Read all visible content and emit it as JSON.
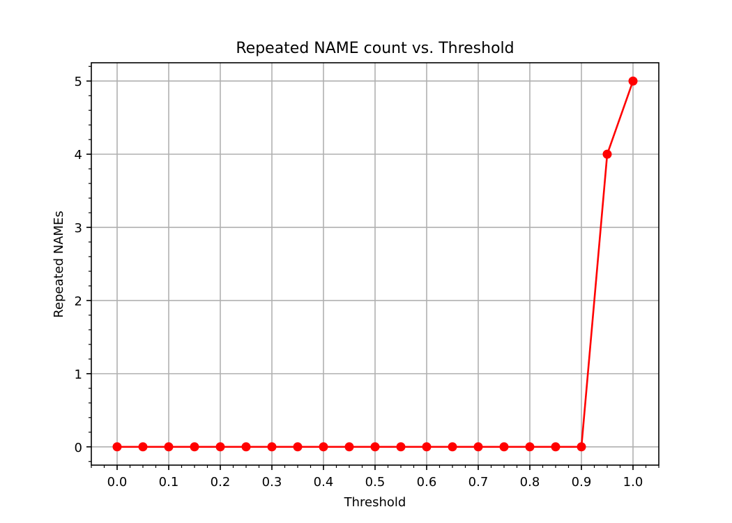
{
  "chart_data": {
    "type": "line",
    "title": "Repeated NAME count vs. Threshold",
    "xlabel": "Threshold",
    "ylabel": "Repeated NAMEs",
    "xlim": [
      -0.05,
      1.05
    ],
    "ylim": [
      -0.25,
      5.25
    ],
    "xticks": [
      0.0,
      0.1,
      0.2,
      0.3,
      0.4,
      0.5,
      0.6,
      0.7,
      0.8,
      0.9,
      1.0
    ],
    "xtick_labels": [
      "0.0",
      "0.1",
      "0.2",
      "0.3",
      "0.4",
      "0.5",
      "0.6",
      "0.7",
      "0.8",
      "0.9",
      "1.0"
    ],
    "yticks": [
      0,
      1,
      2,
      3,
      4,
      5
    ],
    "ytick_labels": [
      "0",
      "1",
      "2",
      "3",
      "4",
      "5"
    ],
    "x_minor_step": 0.025,
    "y_minor_step": 0.2,
    "grid": true,
    "legend": "none",
    "series": [
      {
        "color": "#ff0000",
        "marker": "circle",
        "x": [
          0.0,
          0.05,
          0.1,
          0.15,
          0.2,
          0.25,
          0.3,
          0.35,
          0.4,
          0.45,
          0.5,
          0.55,
          0.6,
          0.65,
          0.7,
          0.75,
          0.8,
          0.85,
          0.9,
          0.95,
          1.0
        ],
        "y": [
          0,
          0,
          0,
          0,
          0,
          0,
          0,
          0,
          0,
          0,
          0,
          0,
          0,
          0,
          0,
          0,
          0,
          0,
          0,
          4,
          5
        ]
      }
    ]
  }
}
